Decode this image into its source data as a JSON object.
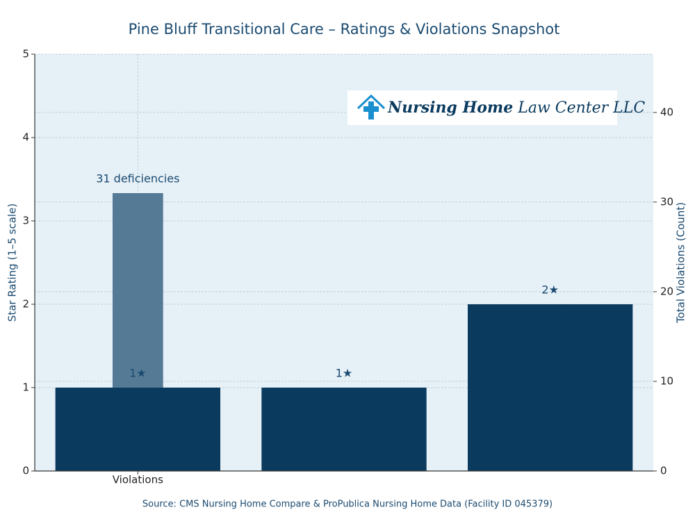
{
  "chart_data": {
    "type": "bar",
    "title": "Pine Bluff Transitional Care – Ratings & Violations Snapshot",
    "ylabel": "Star Rating (1–5 scale)",
    "y2label": "Total Violations (Count)",
    "source": "Source: CMS Nursing Home Compare & ProPublica Nursing Home Data (Facility ID 045379)",
    "logo": [
      "Nursing Home",
      "Law Center LLC"
    ],
    "categories": [
      "Violations",
      null,
      null
    ],
    "series": [
      {
        "color": "#0a3a5e",
        "values": [
          1,
          1,
          2
        ],
        "value_labels": [
          "1★",
          "1★",
          "2★"
        ]
      },
      {
        "color": "#557a96",
        "axis": "y2",
        "values": [
          31,
          null,
          null
        ],
        "value_labels": [
          "31 deficiencies",
          null,
          null
        ]
      }
    ],
    "ylim": [
      0,
      5
    ],
    "yticks": [
      0,
      1,
      2,
      3,
      4,
      5
    ],
    "y2lim": [
      0,
      46.5
    ],
    "y2ticks": [
      0,
      10,
      20,
      30,
      40
    ],
    "grid": true,
    "background": "#e6f0f7"
  }
}
